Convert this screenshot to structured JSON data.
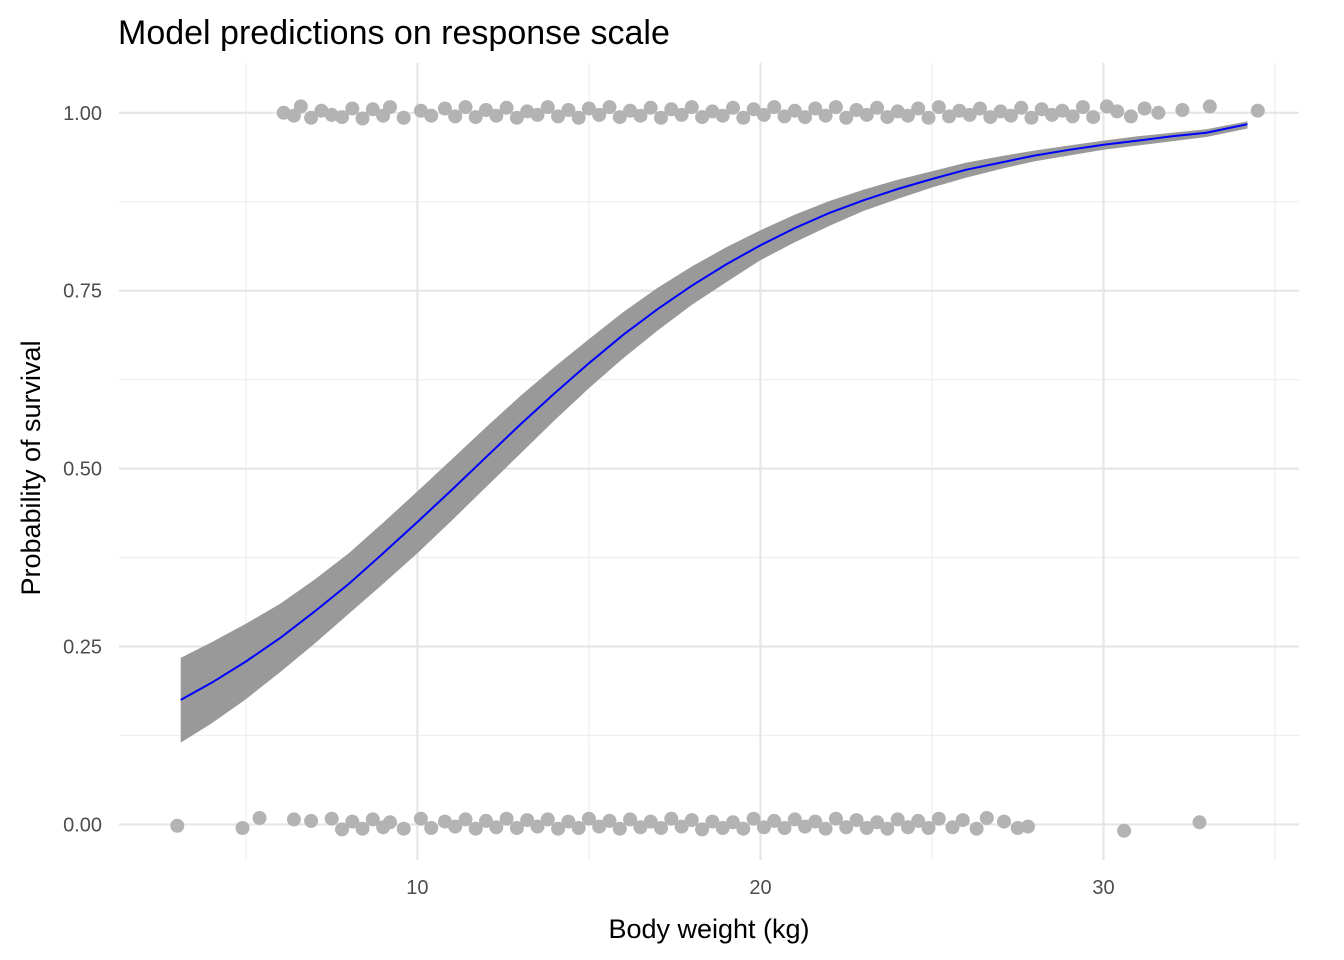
{
  "chart_data": {
    "type": "line",
    "title": "Model predictions on response scale",
    "xlabel": "Body weight (kg)",
    "ylabel": "Probability of survival",
    "xlim": [
      1.3,
      35.7
    ],
    "ylim": [
      -0.05,
      1.07
    ],
    "x_ticks": [
      10,
      20,
      30
    ],
    "x_tick_labels": [
      "10",
      "20",
      "30"
    ],
    "x_minor_ticks": [
      5,
      15,
      25,
      35
    ],
    "y_ticks": [
      0,
      0.25,
      0.5,
      0.75,
      1
    ],
    "y_tick_labels": [
      "0.00",
      "0.25",
      "0.50",
      "0.75",
      "1.00"
    ],
    "y_minor_ticks": [
      0.125,
      0.375,
      0.625,
      0.875
    ],
    "grid": true,
    "legend": "none",
    "colors": {
      "line": "#0000ff",
      "ribbon": "#999999",
      "points": "#b3b3b3",
      "grid": "#e6e6e6"
    },
    "fit": {
      "name": "prediction",
      "x": [
        3.1,
        4,
        5,
        6,
        7,
        8,
        9,
        10,
        11,
        12,
        13,
        14,
        15,
        16,
        17,
        18,
        19,
        20,
        21,
        22,
        23,
        24,
        25,
        26,
        27,
        28,
        29,
        30,
        31,
        32,
        33,
        34.2
      ],
      "y": [
        0.175,
        0.199,
        0.229,
        0.262,
        0.299,
        0.338,
        0.381,
        0.425,
        0.47,
        0.516,
        0.562,
        0.606,
        0.648,
        0.688,
        0.724,
        0.757,
        0.787,
        0.814,
        0.838,
        0.859,
        0.877,
        0.893,
        0.907,
        0.92,
        0.93,
        0.94,
        0.948,
        0.955,
        0.961,
        0.967,
        0.972,
        0.984
      ],
      "lower": [
        0.115,
        0.142,
        0.176,
        0.214,
        0.254,
        0.296,
        0.338,
        0.381,
        0.427,
        0.474,
        0.521,
        0.568,
        0.613,
        0.655,
        0.694,
        0.73,
        0.762,
        0.793,
        0.818,
        0.841,
        0.862,
        0.879,
        0.895,
        0.909,
        0.921,
        0.932,
        0.94,
        0.948,
        0.954,
        0.96,
        0.966,
        0.978
      ],
      "upper": [
        0.234,
        0.256,
        0.282,
        0.31,
        0.344,
        0.381,
        0.424,
        0.468,
        0.513,
        0.558,
        0.602,
        0.643,
        0.682,
        0.72,
        0.754,
        0.784,
        0.811,
        0.835,
        0.857,
        0.876,
        0.892,
        0.906,
        0.918,
        0.93,
        0.939,
        0.947,
        0.954,
        0.961,
        0.967,
        0.972,
        0.977,
        0.988
      ]
    },
    "points_survived": {
      "name": "survived",
      "x": [
        6.1,
        6.4,
        6.6,
        6.9,
        7.2,
        7.5,
        7.8,
        8.1,
        8.4,
        8.7,
        9.0,
        9.2,
        9.6,
        10.1,
        10.4,
        10.8,
        11.1,
        11.4,
        11.7,
        12.0,
        12.3,
        12.6,
        12.9,
        13.2,
        13.5,
        13.8,
        14.1,
        14.4,
        14.7,
        15.0,
        15.3,
        15.6,
        15.9,
        16.2,
        16.5,
        16.8,
        17.1,
        17.4,
        17.7,
        18.0,
        18.3,
        18.6,
        18.9,
        19.2,
        19.5,
        19.8,
        20.1,
        20.4,
        20.7,
        21.0,
        21.3,
        21.6,
        21.9,
        22.2,
        22.5,
        22.8,
        23.1,
        23.4,
        23.7,
        24.0,
        24.3,
        24.6,
        24.9,
        25.2,
        25.5,
        25.8,
        26.1,
        26.4,
        26.7,
        27.0,
        27.3,
        27.6,
        27.9,
        28.2,
        28.5,
        28.8,
        29.1,
        29.4,
        29.7,
        30.1,
        30.4,
        30.8,
        31.2,
        31.6,
        32.3,
        33.1,
        34.5
      ],
      "y": [
        1.0,
        0.996,
        1.009,
        0.993,
        1.003,
        0.997,
        0.994,
        1.006,
        0.992,
        1.005,
        0.996,
        1.008,
        0.993,
        1.003,
        0.996,
        1.006,
        0.995,
        1.008,
        0.994,
        1.004,
        0.996,
        1.007,
        0.993,
        1.002,
        0.997,
        1.008,
        0.995,
        1.004,
        0.993,
        1.006,
        0.997,
        1.008,
        0.994,
        1.003,
        0.996,
        1.007,
        0.993,
        1.005,
        0.997,
        1.008,
        0.994,
        1.002,
        0.996,
        1.007,
        0.993,
        1.005,
        0.997,
        1.008,
        0.995,
        1.003,
        0.994,
        1.006,
        0.996,
        1.008,
        0.993,
        1.004,
        0.997,
        1.007,
        0.994,
        1.002,
        0.996,
        1.006,
        0.993,
        1.008,
        0.995,
        1.003,
        0.997,
        1.006,
        0.994,
        1.002,
        0.996,
        1.007,
        0.993,
        1.005,
        0.997,
        1.003,
        0.995,
        1.008,
        0.994,
        1.009,
        1.002,
        0.995,
        1.006,
        1.0,
        1.004,
        1.009,
        1.003
      ]
    },
    "points_died": {
      "name": "died",
      "x": [
        3.0,
        4.9,
        5.4,
        6.4,
        6.9,
        7.5,
        7.8,
        8.1,
        8.4,
        8.7,
        9.0,
        9.2,
        9.6,
        10.1,
        10.4,
        10.8,
        11.1,
        11.4,
        11.7,
        12.0,
        12.3,
        12.6,
        12.9,
        13.2,
        13.5,
        13.8,
        14.1,
        14.4,
        14.7,
        15.0,
        15.3,
        15.6,
        15.9,
        16.2,
        16.5,
        16.8,
        17.1,
        17.4,
        17.7,
        18.0,
        18.3,
        18.6,
        18.9,
        19.2,
        19.5,
        19.8,
        20.1,
        20.4,
        20.7,
        21.0,
        21.3,
        21.6,
        21.9,
        22.2,
        22.5,
        22.8,
        23.1,
        23.4,
        23.7,
        24.0,
        24.3,
        24.6,
        24.9,
        25.2,
        25.6,
        25.9,
        26.3,
        26.6,
        27.1,
        27.5,
        27.8,
        30.6,
        32.8
      ],
      "y": [
        -0.002,
        -0.005,
        0.009,
        0.007,
        0.005,
        0.008,
        -0.007,
        0.004,
        -0.006,
        0.007,
        -0.004,
        0.003,
        -0.006,
        0.008,
        -0.005,
        0.004,
        -0.003,
        0.007,
        -0.006,
        0.005,
        -0.004,
        0.008,
        -0.005,
        0.006,
        -0.003,
        0.007,
        -0.006,
        0.004,
        -0.005,
        0.008,
        -0.003,
        0.005,
        -0.006,
        0.007,
        -0.004,
        0.004,
        -0.005,
        0.008,
        -0.003,
        0.006,
        -0.007,
        0.004,
        -0.005,
        0.003,
        -0.006,
        0.008,
        -0.004,
        0.005,
        -0.005,
        0.007,
        -0.003,
        0.004,
        -0.006,
        0.008,
        -0.004,
        0.006,
        -0.005,
        0.003,
        -0.006,
        0.007,
        -0.004,
        0.005,
        -0.005,
        0.008,
        -0.004,
        0.006,
        -0.006,
        0.009,
        0.004,
        -0.005,
        -0.003,
        -0.009,
        0.003
      ]
    }
  }
}
